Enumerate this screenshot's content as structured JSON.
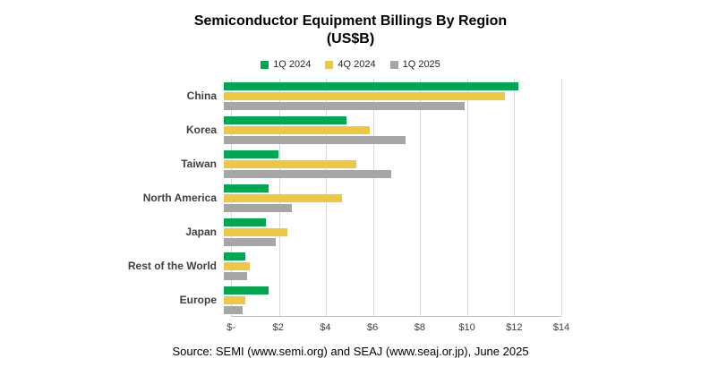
{
  "title": {
    "line1": "Semiconductor Equipment Billings By Region",
    "line2": "(US$B)"
  },
  "legend": [
    {
      "label": "1Q 2024",
      "color": "#00A650"
    },
    {
      "label": "4Q 2024",
      "color": "#EFC843"
    },
    {
      "label": "1Q 2025",
      "color": "#A6A6A6"
    }
  ],
  "source": "Source: SEMI (www.semi.org) and SEAJ (www.seaj.or.jp), June 2025",
  "chart_data": {
    "type": "bar",
    "orientation": "horizontal",
    "title": "Semiconductor Equipment Billings By Region (US$B)",
    "categories": [
      "China",
      "Korea",
      "Taiwan",
      "North America",
      "Japan",
      "Rest of the World",
      "Europe"
    ],
    "series": [
      {
        "name": "1Q 2024",
        "color": "#00A650",
        "values": [
          12.5,
          5.2,
          2.3,
          1.9,
          1.8,
          0.9,
          1.9
        ]
      },
      {
        "name": "4Q 2024",
        "color": "#EFC843",
        "values": [
          11.9,
          6.2,
          5.6,
          5.0,
          2.7,
          1.1,
          0.9
        ]
      },
      {
        "name": "1Q 2025",
        "color": "#A6A6A6",
        "values": [
          10.2,
          7.7,
          7.1,
          2.9,
          2.2,
          1.0,
          0.8
        ]
      }
    ],
    "xlabel": "",
    "ylabel": "",
    "xlim": [
      0,
      14
    ],
    "xticks": {
      "values": [
        0,
        2,
        4,
        6,
        8,
        10,
        12,
        14
      ],
      "labels": [
        "$-",
        "$2",
        "$4",
        "$6",
        "$8",
        "$10",
        "$12",
        "$14"
      ]
    },
    "grid": true,
    "legend_position": "top"
  }
}
